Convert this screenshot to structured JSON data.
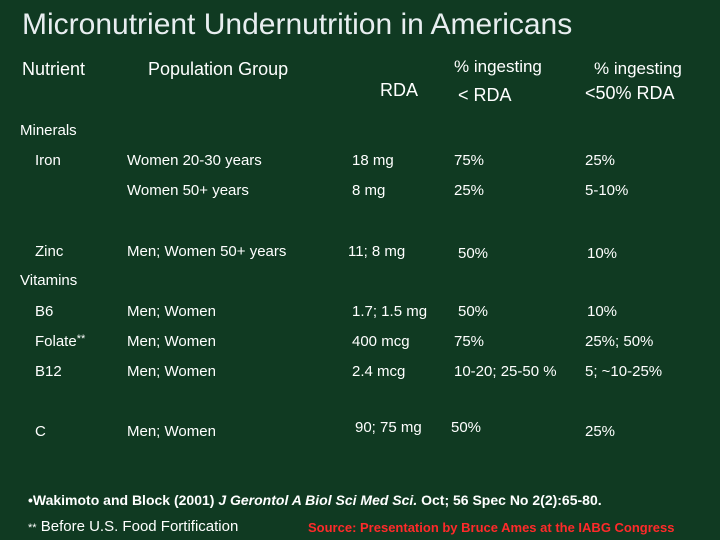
{
  "title": "Micronutrient Undernutrition in Americans",
  "headers": {
    "nutrient": "Nutrient",
    "population": "Population Group",
    "rda": "RDA",
    "pct_below_rda_top": "% ingesting",
    "pct_below_rda_bottom": "< RDA",
    "pct_below_half_top": "% ingesting",
    "pct_below_half_bottom": "<50% RDA"
  },
  "sections": {
    "minerals": "Minerals",
    "vitamins": "Vitamins"
  },
  "rows": [
    {
      "nutrient": "Iron",
      "group": "Women 20-30  years",
      "rda": "18 mg",
      "pct_rda": "75%",
      "pct_half": "25%"
    },
    {
      "nutrient": "",
      "group": "Women 50+ years",
      "rda": "8 mg",
      "pct_rda": "25%",
      "pct_half": "5-10%"
    },
    {
      "nutrient": "Zinc",
      "group": "Men; Women  50+ years",
      "rda": "11; 8 mg",
      "pct_rda": "50%",
      "pct_half": "10%"
    },
    {
      "nutrient": "B6",
      "group": "Men; Women",
      "rda": "1.7; 1.5 mg",
      "pct_rda": "50%",
      "pct_half": "10%"
    },
    {
      "nutrient": "Folate",
      "nutrient_mark": "**",
      "group": "Men; Women",
      "rda": "400 mcg",
      "pct_rda": "75%",
      "pct_half": "25%; 50%"
    },
    {
      "nutrient": "B12",
      "group": "Men; Women",
      "rda": "2.4 mcg",
      "pct_rda": "10-20; 25-50 %",
      "pct_half": "5; ~10-25%"
    },
    {
      "nutrient": "C",
      "group": "Men; Women",
      "rda": "90; 75 mg",
      "pct_rda": "50%",
      "pct_half": "25%"
    }
  ],
  "footer": {
    "citation_authors": "•Wakimoto and Block (2001)",
    "citation_journal": "J Gerontol A Biol Sci Med Sci.",
    "citation_rest": "Oct; 56 Spec No 2(2):65-80.",
    "footnote_mark": "**",
    "footnote_text": "Before U.S. Food Fortification",
    "source": "Source: Presentation by Bruce Ames at the IABG Congress"
  },
  "colors": {
    "background": "#103a22",
    "text": "#ffffff",
    "source_text": "#ff2a2a"
  }
}
